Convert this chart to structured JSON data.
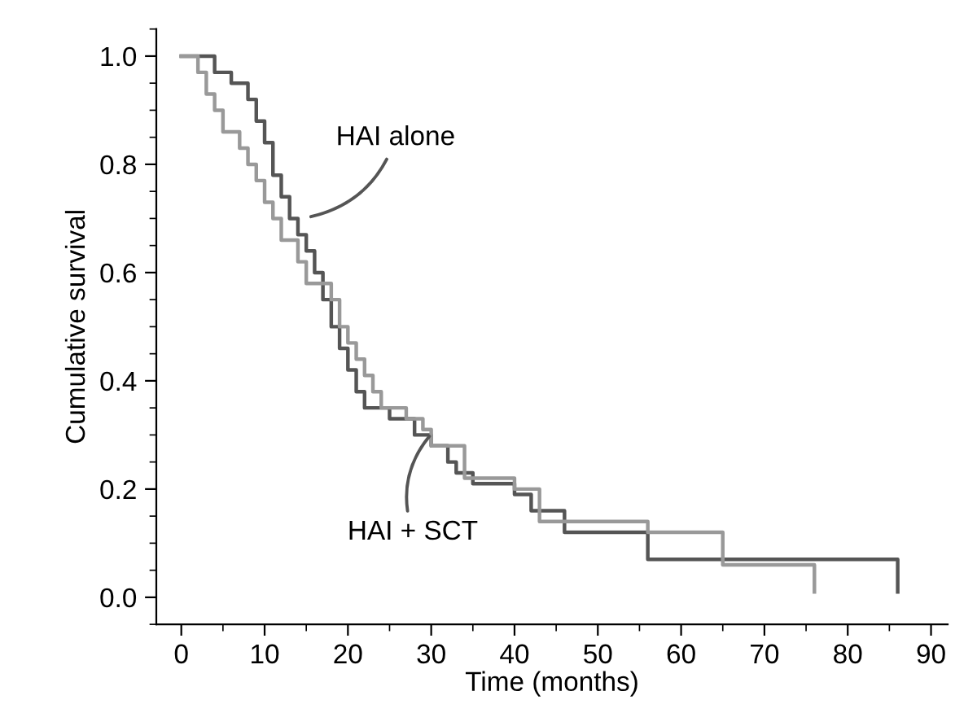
{
  "chart_data": {
    "type": "step",
    "xlabel": "Time (months)",
    "ylabel": "Cumulative survival",
    "xlim": [
      -3,
      92
    ],
    "ylim": [
      -0.05,
      1.05
    ],
    "xticks": [
      0,
      10,
      20,
      30,
      40,
      50,
      60,
      70,
      80,
      90
    ],
    "yticks": [
      {
        "value": 0,
        "label": "0.0"
      },
      {
        "value": 0.2,
        "label": "0.2"
      },
      {
        "value": 0.4,
        "label": "0.4"
      },
      {
        "value": 0.6,
        "label": "0.6"
      },
      {
        "value": 0.8,
        "label": "0.8"
      },
      {
        "value": 1,
        "label": "1.0"
      }
    ],
    "grid": false,
    "legend": false,
    "marker": "none",
    "line_style": "solid",
    "series": [
      {
        "name": "HAI alone",
        "color": "#555555",
        "x": [
          0,
          4,
          6,
          8,
          9,
          10,
          11,
          12,
          13,
          14,
          15,
          16,
          17,
          18,
          19,
          20,
          21,
          22,
          25,
          28,
          30,
          32,
          33,
          35,
          40,
          42,
          46,
          56,
          86
        ],
        "values": [
          1.0,
          0.97,
          0.95,
          0.92,
          0.88,
          0.84,
          0.78,
          0.74,
          0.7,
          0.67,
          0.64,
          0.6,
          0.55,
          0.5,
          0.46,
          0.42,
          0.38,
          0.35,
          0.33,
          0.3,
          0.28,
          0.25,
          0.23,
          0.21,
          0.19,
          0.16,
          0.12,
          0.07,
          0.01
        ]
      },
      {
        "name": "HAI + SCT",
        "color": "#999999",
        "x": [
          0,
          2,
          3,
          4,
          5,
          7,
          8,
          9,
          10,
          11,
          12,
          14,
          15,
          18,
          19,
          20,
          21,
          22,
          23,
          24,
          27,
          29,
          30,
          34,
          40,
          43,
          56,
          65,
          76
        ],
        "values": [
          1.0,
          0.97,
          0.93,
          0.9,
          0.86,
          0.83,
          0.8,
          0.77,
          0.73,
          0.7,
          0.66,
          0.62,
          0.58,
          0.55,
          0.5,
          0.47,
          0.44,
          0.41,
          0.38,
          0.35,
          0.33,
          0.31,
          0.28,
          0.22,
          0.2,
          0.14,
          0.12,
          0.06,
          0.01
        ]
      }
    ]
  }
}
